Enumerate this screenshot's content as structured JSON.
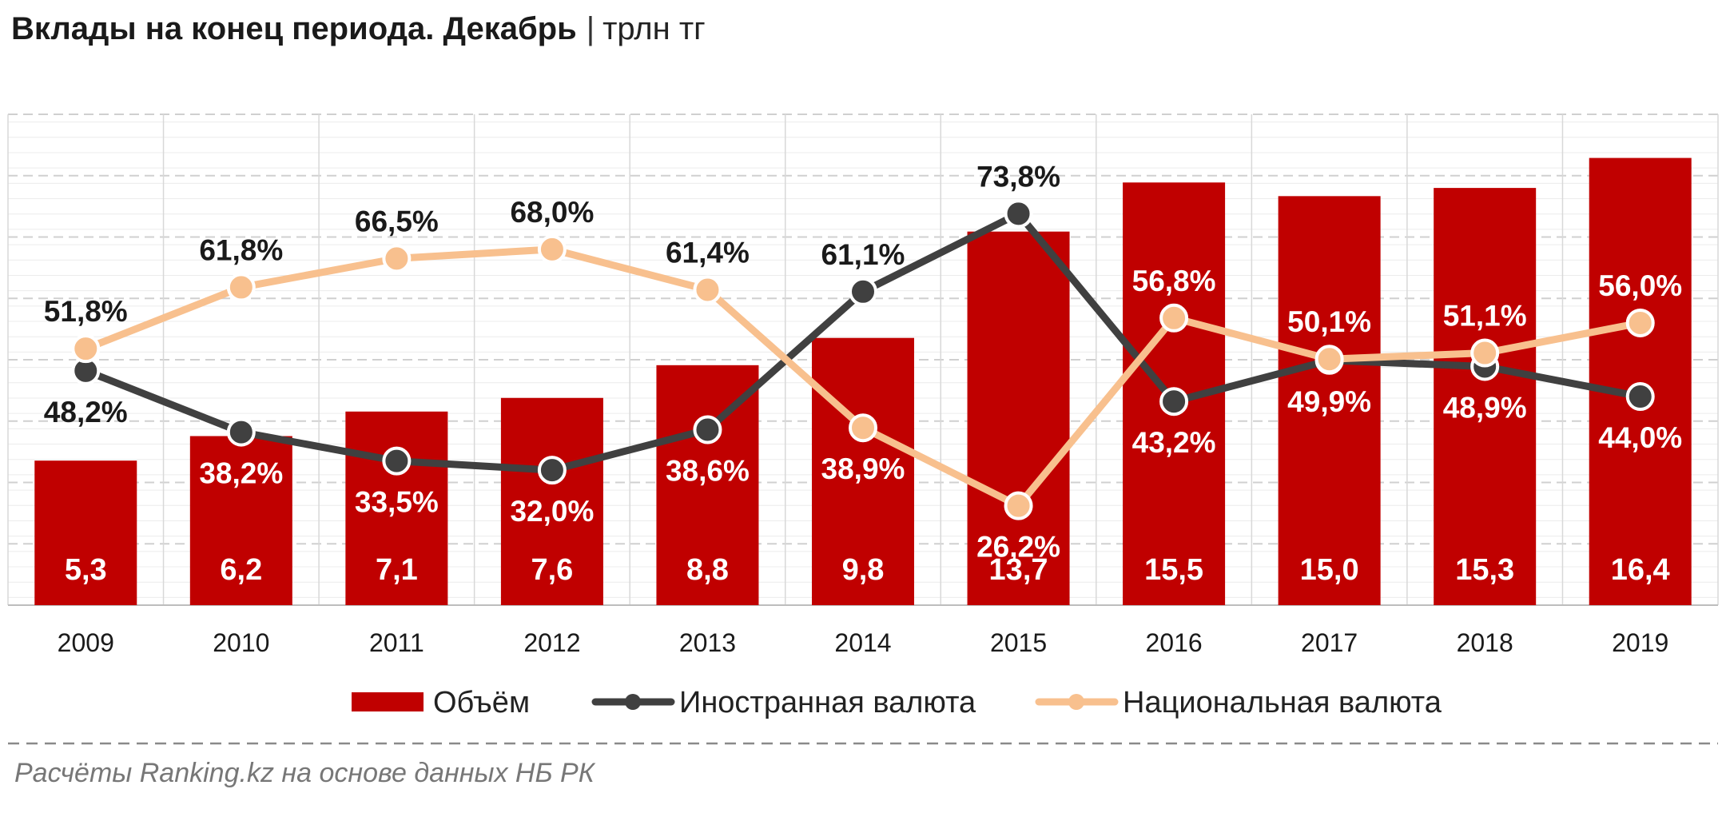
{
  "title": "Вклады на конец периода. Декабрь",
  "unit": "трлн тг",
  "source": "Расчёты Ranking.kz на основе данных  НБ РК",
  "colors": {
    "bar": "#c00000",
    "foreign": "#404040",
    "national": "#f8c08e",
    "grid": "#d0d0d0"
  },
  "chart_data": {
    "type": "bar",
    "categories": [
      "2009",
      "2010",
      "2011",
      "2012",
      "2013",
      "2014",
      "2015",
      "2016",
      "2017",
      "2018",
      "2019"
    ],
    "series": [
      {
        "name": "Объём",
        "type": "bar",
        "axis": "left",
        "values": [
          5.3,
          6.2,
          7.1,
          7.6,
          8.8,
          9.8,
          13.7,
          15.5,
          15.0,
          15.3,
          16.4
        ],
        "labels": [
          "5,3",
          "6,2",
          "7,1",
          "7,6",
          "8,8",
          "9,8",
          "13,7",
          "15,5",
          "15,0",
          "15,3",
          "16,4"
        ]
      },
      {
        "name": "Иностранная валюта",
        "type": "line",
        "axis": "right",
        "values": [
          48.2,
          38.2,
          33.5,
          32.0,
          38.6,
          61.1,
          73.8,
          43.2,
          49.9,
          48.9,
          44.0
        ],
        "labels": [
          "48,2%",
          "38,2%",
          "33,5%",
          "32,0%",
          "38,6%",
          "61,1%",
          "73,8%",
          "43,2%",
          "49,9%",
          "48,9%",
          "44,0%"
        ]
      },
      {
        "name": "Национальная валюта",
        "type": "line",
        "axis": "right",
        "values": [
          51.8,
          61.8,
          66.5,
          68.0,
          61.4,
          38.9,
          26.2,
          56.8,
          50.1,
          51.1,
          56.0
        ],
        "labels": [
          "51,8%",
          "61,8%",
          "66,5%",
          "68,0%",
          "61,4%",
          "38,9%",
          "26,2%",
          "56,8%",
          "50,1%",
          "51,1%",
          "56,0%"
        ]
      }
    ],
    "ylim_left": [
      0,
      18
    ],
    "ylim_right": [
      10,
      90
    ],
    "grid": true,
    "legend": "bottom"
  }
}
